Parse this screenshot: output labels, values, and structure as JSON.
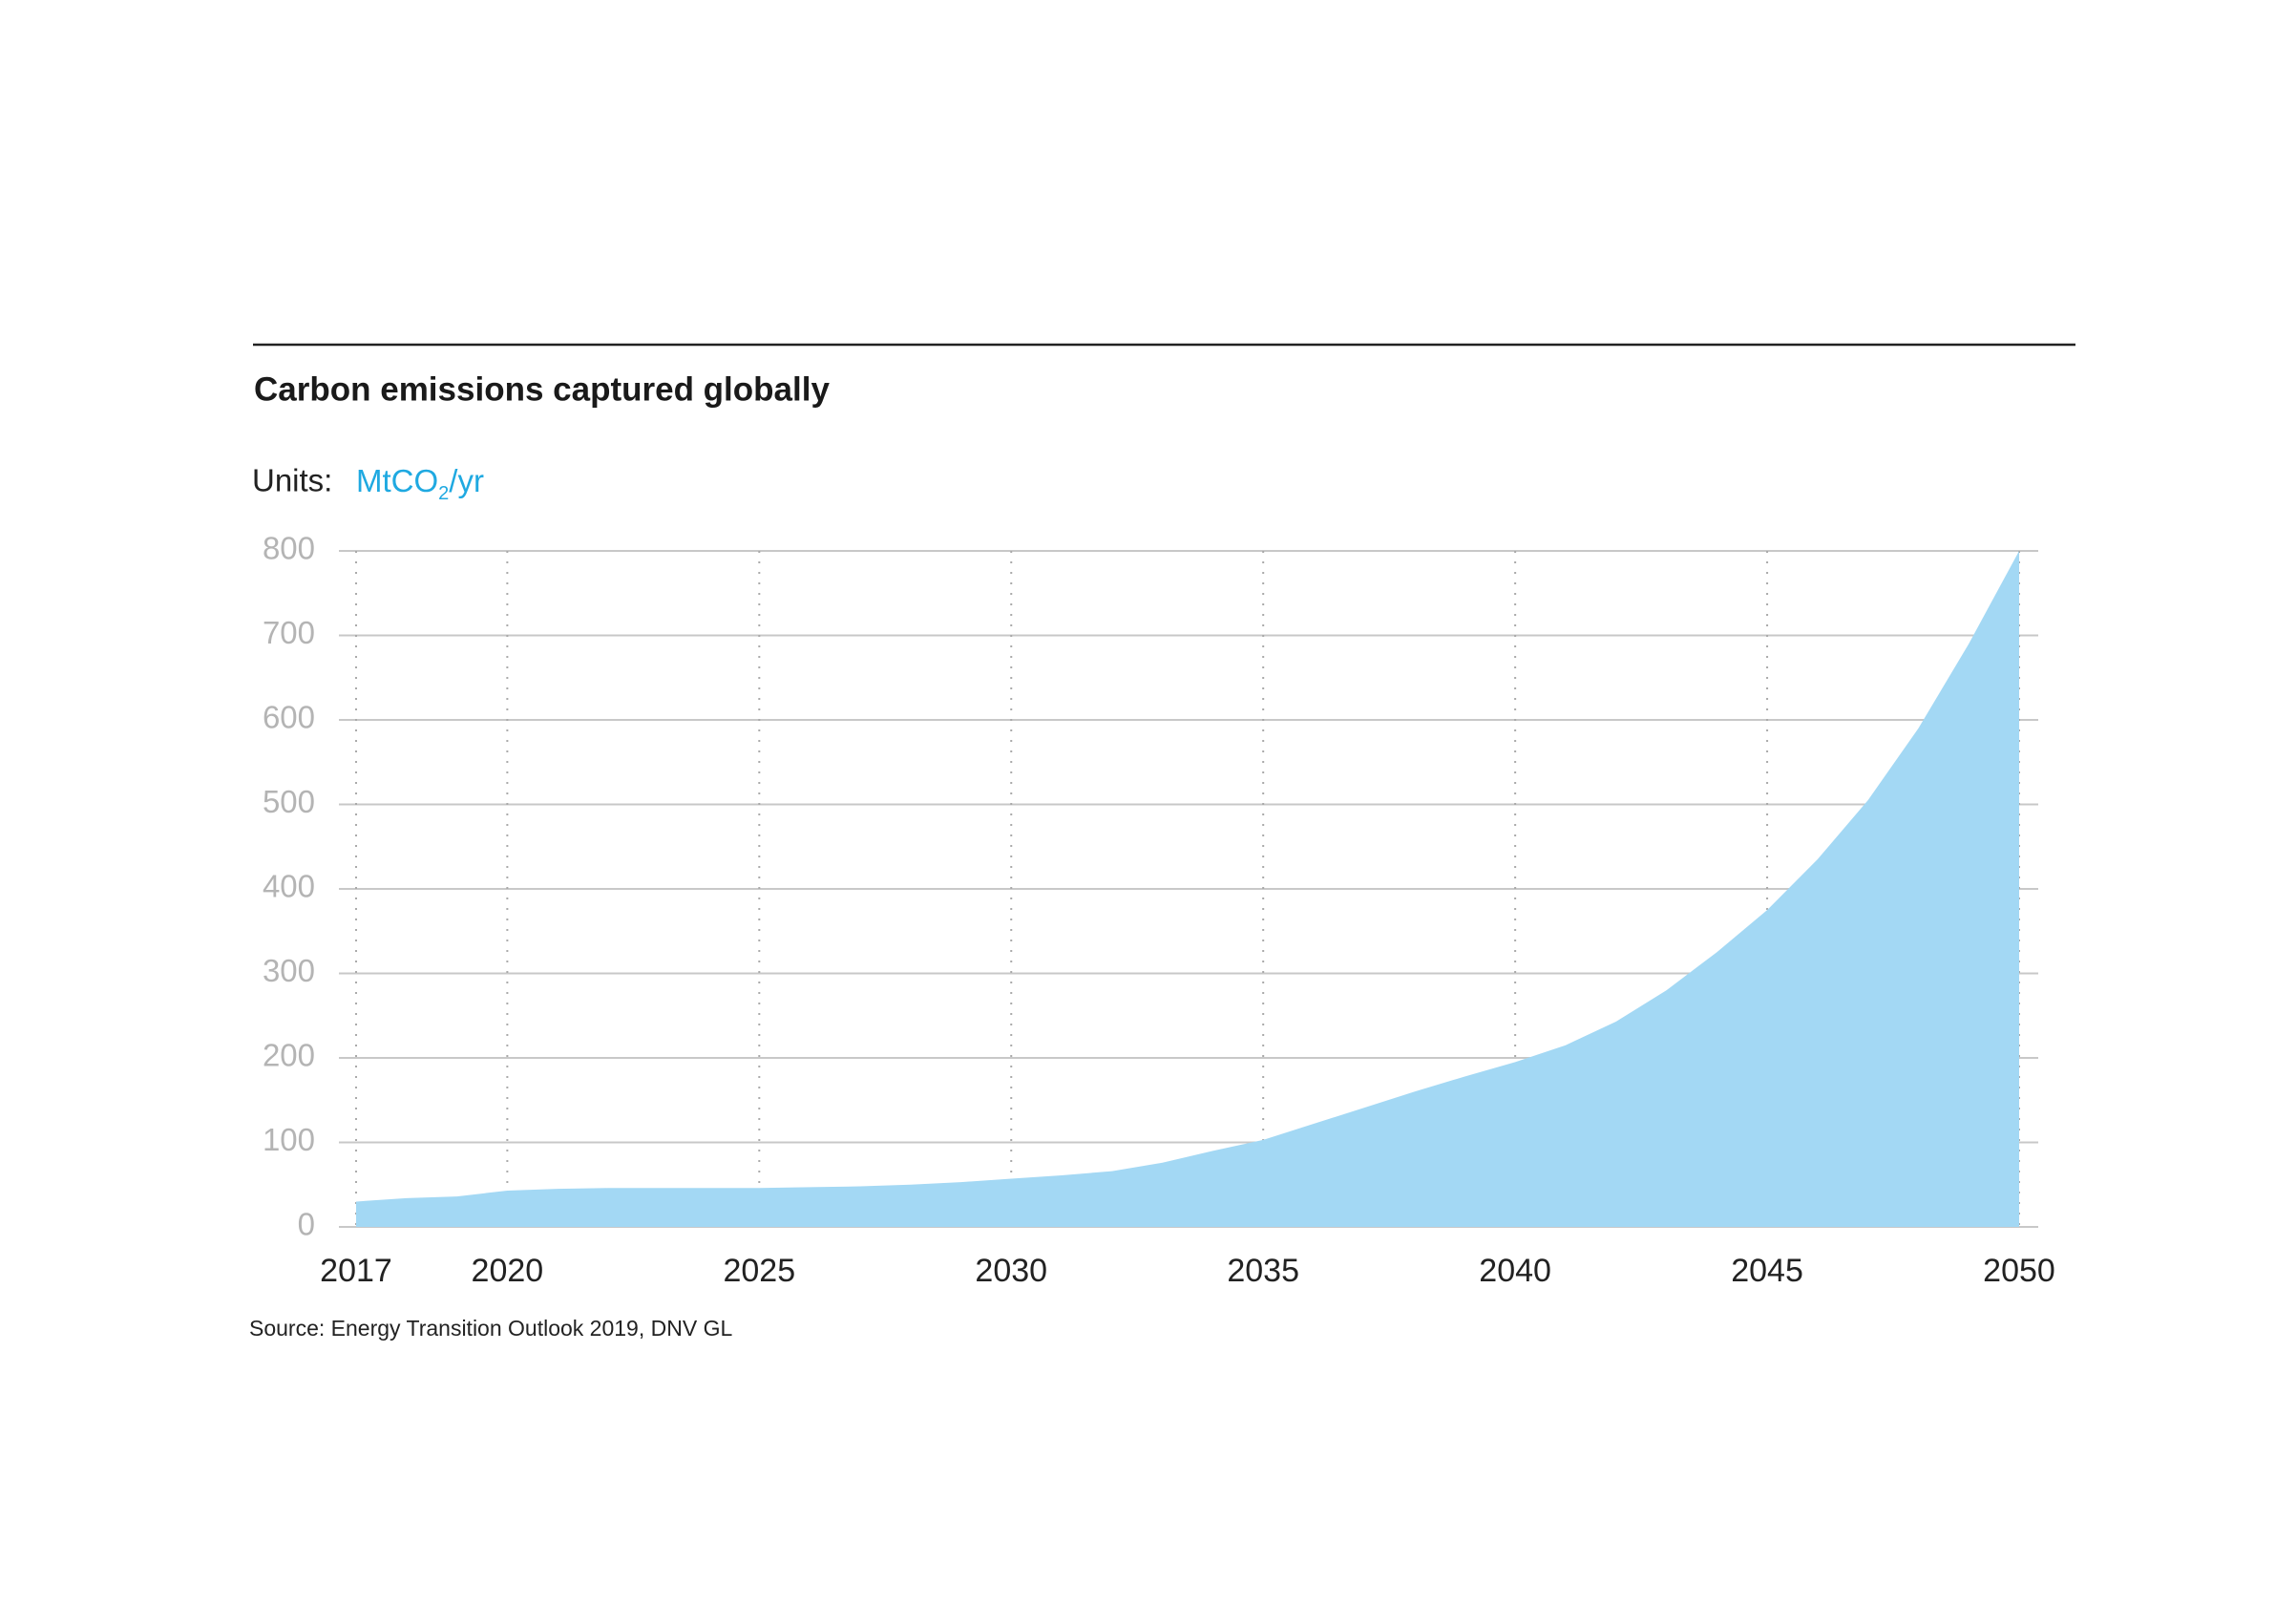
{
  "chart_data": {
    "type": "area",
    "title": "Carbon emissions captured globally",
    "units_label": "Units:",
    "units_main": "MtCO",
    "units_sub": "2",
    "units_tail": "/yr",
    "source": "Source: Energy Transition Outlook 2019, DNV GL",
    "x": [
      2017,
      2018,
      2019,
      2020,
      2021,
      2022,
      2023,
      2024,
      2025,
      2026,
      2027,
      2028,
      2029,
      2030,
      2031,
      2032,
      2033,
      2034,
      2035,
      2036,
      2037,
      2038,
      2039,
      2040,
      2041,
      2042,
      2043,
      2044,
      2045,
      2046,
      2047,
      2048,
      2049,
      2050
    ],
    "values": [
      30,
      34,
      36,
      43,
      45,
      46,
      46,
      46,
      46,
      47,
      48,
      50,
      53,
      57,
      61,
      66,
      76,
      90,
      103,
      122,
      141,
      160,
      178,
      195,
      215,
      243,
      280,
      325,
      375,
      435,
      505,
      590,
      690,
      800
    ],
    "color": "#a3d8f4",
    "xlim": [
      2017,
      2050
    ],
    "xticks": [
      2017,
      2020,
      2025,
      2030,
      2035,
      2040,
      2045,
      2050
    ],
    "ylim": [
      0,
      800
    ],
    "yticks": [
      0,
      100,
      200,
      300,
      400,
      500,
      600,
      700,
      800
    ],
    "grid": true
  }
}
